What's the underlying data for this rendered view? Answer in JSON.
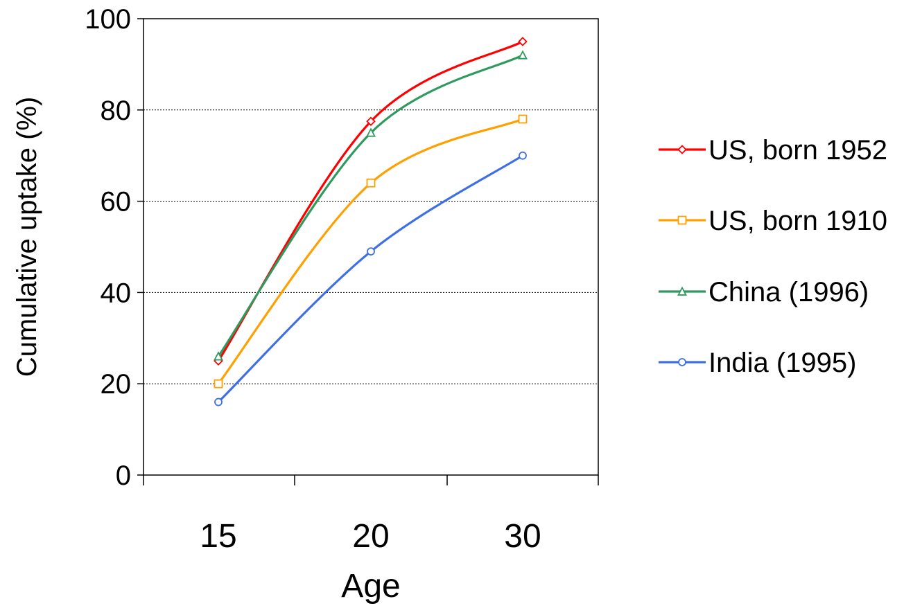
{
  "chart_data": {
    "type": "line",
    "title": "",
    "xlabel": "Age",
    "ylabel": "Cumulative uptake (%)",
    "ylim": [
      0,
      100
    ],
    "yticks": [
      "0",
      "20",
      "40",
      "60",
      "80",
      "100"
    ],
    "categories": [
      "15",
      "20",
      "30"
    ],
    "grid": "horizontal dotted gridlines",
    "legend_position": "right",
    "series": [
      {
        "name": "US, born 1952",
        "color": "#ff0000",
        "marker": "diamond",
        "values": [
          25,
          77.5,
          95
        ]
      },
      {
        "name": "US, born 1910",
        "color": "#ffa000",
        "marker": "square",
        "values": [
          20,
          64,
          78
        ]
      },
      {
        "name": "China (1996)",
        "color": "#2f9a5f",
        "marker": "triangle",
        "values": [
          26,
          75,
          92
        ]
      },
      {
        "name": "India (1995)",
        "color": "#3f6fe6",
        "marker": "circle",
        "values": [
          16,
          49,
          70
        ]
      }
    ]
  }
}
